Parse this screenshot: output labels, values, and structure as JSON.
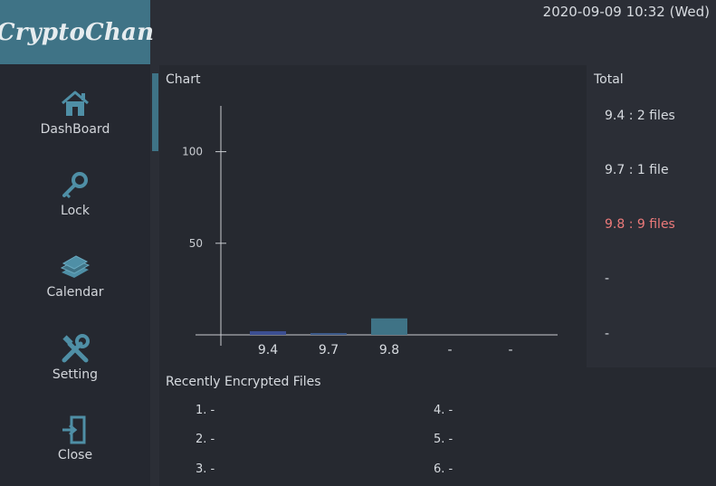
{
  "app": {
    "title": "CryptoChan"
  },
  "header": {
    "datetime": "2020-09-09 10:32 (Wed)"
  },
  "sidebar": {
    "items": [
      {
        "label": "DashBoard",
        "icon": "house-icon"
      },
      {
        "label": "Lock",
        "icon": "key-icon"
      },
      {
        "label": "Calendar",
        "icon": "book-stack-icon"
      },
      {
        "label": "Setting",
        "icon": "tools-icon"
      },
      {
        "label": "Close",
        "icon": "exit-door-icon"
      }
    ]
  },
  "chart_panel": {
    "title": "Chart"
  },
  "chart_data": {
    "type": "bar",
    "title": "Chart",
    "categories": [
      "9.4",
      "9.7",
      "9.8",
      "-",
      "-"
    ],
    "values": [
      2,
      1,
      9,
      0,
      0
    ],
    "yticks": [
      50,
      100
    ],
    "ylim": [
      0,
      125
    ],
    "xlabel": "",
    "ylabel": "",
    "bar_colors": [
      "#3c4f93",
      "#3c5a8a",
      "#3f7386",
      "#3f7386",
      "#3f7386"
    ]
  },
  "total_panel": {
    "title": "Total",
    "items": [
      "9.4 : 2 files",
      "9.7 : 1 file",
      "9.8 : 9 files",
      "-",
      "-"
    ],
    "highlight_color": "#ec7a7a"
  },
  "recent_panel": {
    "title": "Recently Encrypted Files",
    "items": [
      "1. -",
      "2. -",
      "3. -",
      "4. -",
      "5. -",
      "6. -"
    ]
  },
  "colors": {
    "accent": "#3f7386",
    "background": "#2b2e36",
    "panel": "#262930"
  }
}
